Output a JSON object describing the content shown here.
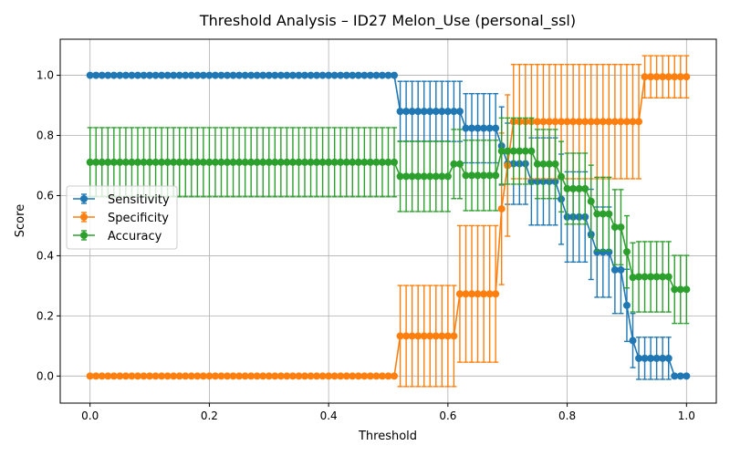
{
  "chart_data": {
    "type": "line",
    "title": "Threshold Analysis – ID27 Melon_Use (personal_ssl)",
    "xlabel": "Threshold",
    "ylabel": "Score",
    "xlim": [
      -0.05,
      1.05
    ],
    "ylim": [
      -0.09,
      1.12
    ],
    "xticks": [
      0.0,
      0.2,
      0.4,
      0.6,
      0.8,
      1.0
    ],
    "xtick_labels": [
      "0.0",
      "0.2",
      "0.4",
      "0.6",
      "0.8",
      "1.0"
    ],
    "yticks": [
      0.0,
      0.2,
      0.4,
      0.6,
      0.8,
      1.0
    ],
    "ytick_labels": [
      "0.0",
      "0.2",
      "0.4",
      "0.6",
      "0.8",
      "1.0"
    ],
    "grid": true,
    "legend_position": "center-left",
    "error_bars": true,
    "x": [
      0.0,
      0.01,
      0.02,
      0.03,
      0.04,
      0.05,
      0.06,
      0.07,
      0.08,
      0.09,
      0.1,
      0.11,
      0.12,
      0.13,
      0.14,
      0.15,
      0.16,
      0.17,
      0.18,
      0.19,
      0.2,
      0.21,
      0.22,
      0.23,
      0.24,
      0.25,
      0.26,
      0.27,
      0.28,
      0.29,
      0.3,
      0.31,
      0.32,
      0.33,
      0.34,
      0.35,
      0.36,
      0.37,
      0.38,
      0.39,
      0.4,
      0.41,
      0.42,
      0.43,
      0.44,
      0.45,
      0.46,
      0.47,
      0.48,
      0.49,
      0.5,
      0.51,
      0.52,
      0.53,
      0.54,
      0.55,
      0.56,
      0.57,
      0.58,
      0.59,
      0.6,
      0.61,
      0.62,
      0.63,
      0.64,
      0.65,
      0.66,
      0.67,
      0.68,
      0.69,
      0.7,
      0.71,
      0.72,
      0.73,
      0.74,
      0.75,
      0.76,
      0.77,
      0.78,
      0.79,
      0.8,
      0.81,
      0.82,
      0.83,
      0.84,
      0.85,
      0.86,
      0.87,
      0.88,
      0.89,
      0.9,
      0.91,
      0.92,
      0.93,
      0.94,
      0.95,
      0.96,
      0.97,
      0.98,
      0.99,
      1.0
    ],
    "series": [
      {
        "name": "Sensitivity",
        "color": "#1f77b4",
        "values": [
          1.0,
          1.0,
          1.0,
          1.0,
          1.0,
          1.0,
          1.0,
          1.0,
          1.0,
          1.0,
          1.0,
          1.0,
          1.0,
          1.0,
          1.0,
          1.0,
          1.0,
          1.0,
          1.0,
          1.0,
          1.0,
          1.0,
          1.0,
          1.0,
          1.0,
          1.0,
          1.0,
          1.0,
          1.0,
          1.0,
          1.0,
          1.0,
          1.0,
          1.0,
          1.0,
          1.0,
          1.0,
          1.0,
          1.0,
          1.0,
          1.0,
          1.0,
          1.0,
          1.0,
          1.0,
          1.0,
          1.0,
          1.0,
          1.0,
          1.0,
          1.0,
          1.0,
          0.88,
          0.88,
          0.88,
          0.88,
          0.88,
          0.88,
          0.88,
          0.88,
          0.88,
          0.88,
          0.88,
          0.824,
          0.824,
          0.824,
          0.824,
          0.824,
          0.824,
          0.765,
          0.706,
          0.706,
          0.706,
          0.706,
          0.647,
          0.647,
          0.647,
          0.647,
          0.647,
          0.588,
          0.529,
          0.529,
          0.529,
          0.529,
          0.471,
          0.412,
          0.412,
          0.412,
          0.353,
          0.353,
          0.235,
          0.118,
          0.059,
          0.059,
          0.059,
          0.059,
          0.059,
          0.059,
          0.0,
          0.0,
          0.0
        ],
        "errors": [
          0.0,
          0.0,
          0.0,
          0.0,
          0.0,
          0.0,
          0.0,
          0.0,
          0.0,
          0.0,
          0.0,
          0.0,
          0.0,
          0.0,
          0.0,
          0.0,
          0.0,
          0.0,
          0.0,
          0.0,
          0.0,
          0.0,
          0.0,
          0.0,
          0.0,
          0.0,
          0.0,
          0.0,
          0.0,
          0.0,
          0.0,
          0.0,
          0.0,
          0.0,
          0.0,
          0.0,
          0.0,
          0.0,
          0.0,
          0.0,
          0.0,
          0.0,
          0.0,
          0.0,
          0.0,
          0.0,
          0.0,
          0.0,
          0.0,
          0.0,
          0.0,
          0.0,
          0.1,
          0.1,
          0.1,
          0.1,
          0.1,
          0.1,
          0.1,
          0.1,
          0.1,
          0.1,
          0.1,
          0.115,
          0.115,
          0.115,
          0.115,
          0.115,
          0.115,
          0.13,
          0.135,
          0.135,
          0.135,
          0.135,
          0.145,
          0.145,
          0.145,
          0.145,
          0.145,
          0.15,
          0.15,
          0.15,
          0.15,
          0.15,
          0.15,
          0.15,
          0.15,
          0.15,
          0.145,
          0.145,
          0.12,
          0.09,
          0.07,
          0.07,
          0.07,
          0.07,
          0.07,
          0.07,
          0.0,
          0.0,
          0.0
        ]
      },
      {
        "name": "Specificity",
        "color": "#ff7f0e",
        "values": [
          0.0,
          0.0,
          0.0,
          0.0,
          0.0,
          0.0,
          0.0,
          0.0,
          0.0,
          0.0,
          0.0,
          0.0,
          0.0,
          0.0,
          0.0,
          0.0,
          0.0,
          0.0,
          0.0,
          0.0,
          0.0,
          0.0,
          0.0,
          0.0,
          0.0,
          0.0,
          0.0,
          0.0,
          0.0,
          0.0,
          0.0,
          0.0,
          0.0,
          0.0,
          0.0,
          0.0,
          0.0,
          0.0,
          0.0,
          0.0,
          0.0,
          0.0,
          0.0,
          0.0,
          0.0,
          0.0,
          0.0,
          0.0,
          0.0,
          0.0,
          0.0,
          0.0,
          0.133,
          0.133,
          0.133,
          0.133,
          0.133,
          0.133,
          0.133,
          0.133,
          0.133,
          0.133,
          0.273,
          0.273,
          0.273,
          0.273,
          0.273,
          0.273,
          0.273,
          0.556,
          0.7,
          0.846,
          0.846,
          0.846,
          0.846,
          0.846,
          0.846,
          0.846,
          0.846,
          0.846,
          0.846,
          0.846,
          0.846,
          0.846,
          0.846,
          0.846,
          0.846,
          0.846,
          0.846,
          0.846,
          0.846,
          0.846,
          0.846,
          0.995,
          0.995,
          0.995,
          0.995,
          0.995,
          0.995,
          0.995,
          0.995
        ],
        "errors": [
          0.0,
          0.0,
          0.0,
          0.0,
          0.0,
          0.0,
          0.0,
          0.0,
          0.0,
          0.0,
          0.0,
          0.0,
          0.0,
          0.0,
          0.0,
          0.0,
          0.0,
          0.0,
          0.0,
          0.0,
          0.0,
          0.0,
          0.0,
          0.0,
          0.0,
          0.0,
          0.0,
          0.0,
          0.0,
          0.0,
          0.0,
          0.0,
          0.0,
          0.0,
          0.0,
          0.0,
          0.0,
          0.0,
          0.0,
          0.0,
          0.0,
          0.0,
          0.0,
          0.0,
          0.0,
          0.0,
          0.0,
          0.0,
          0.0,
          0.0,
          0.0,
          0.0,
          0.168,
          0.168,
          0.168,
          0.168,
          0.168,
          0.168,
          0.168,
          0.168,
          0.168,
          0.168,
          0.227,
          0.227,
          0.227,
          0.227,
          0.227,
          0.227,
          0.227,
          0.252,
          0.235,
          0.19,
          0.19,
          0.19,
          0.19,
          0.19,
          0.19,
          0.19,
          0.19,
          0.19,
          0.19,
          0.19,
          0.19,
          0.19,
          0.19,
          0.19,
          0.19,
          0.19,
          0.19,
          0.19,
          0.19,
          0.19,
          0.19,
          0.07,
          0.07,
          0.07,
          0.07,
          0.07,
          0.07,
          0.07,
          0.07
        ]
      },
      {
        "name": "Accuracy",
        "color": "#2ca02c",
        "values": [
          0.711,
          0.711,
          0.711,
          0.711,
          0.711,
          0.711,
          0.711,
          0.711,
          0.711,
          0.711,
          0.711,
          0.711,
          0.711,
          0.711,
          0.711,
          0.711,
          0.711,
          0.711,
          0.711,
          0.711,
          0.711,
          0.711,
          0.711,
          0.711,
          0.711,
          0.711,
          0.711,
          0.711,
          0.711,
          0.711,
          0.711,
          0.711,
          0.711,
          0.711,
          0.711,
          0.711,
          0.711,
          0.711,
          0.711,
          0.711,
          0.711,
          0.711,
          0.711,
          0.711,
          0.711,
          0.711,
          0.711,
          0.711,
          0.711,
          0.711,
          0.711,
          0.711,
          0.664,
          0.664,
          0.664,
          0.664,
          0.664,
          0.664,
          0.664,
          0.664,
          0.664,
          0.705,
          0.705,
          0.667,
          0.667,
          0.667,
          0.667,
          0.667,
          0.667,
          0.748,
          0.748,
          0.748,
          0.748,
          0.748,
          0.748,
          0.705,
          0.705,
          0.705,
          0.705,
          0.663,
          0.623,
          0.623,
          0.623,
          0.623,
          0.581,
          0.539,
          0.539,
          0.539,
          0.495,
          0.495,
          0.413,
          0.328,
          0.33,
          0.33,
          0.33,
          0.33,
          0.33,
          0.33,
          0.288,
          0.288,
          0.288
        ],
        "errors": [
          0.115,
          0.115,
          0.115,
          0.115,
          0.115,
          0.115,
          0.115,
          0.115,
          0.115,
          0.115,
          0.115,
          0.115,
          0.115,
          0.115,
          0.115,
          0.115,
          0.115,
          0.115,
          0.115,
          0.115,
          0.115,
          0.115,
          0.115,
          0.115,
          0.115,
          0.115,
          0.115,
          0.115,
          0.115,
          0.115,
          0.115,
          0.115,
          0.115,
          0.115,
          0.115,
          0.115,
          0.115,
          0.115,
          0.115,
          0.115,
          0.115,
          0.115,
          0.115,
          0.115,
          0.115,
          0.115,
          0.115,
          0.115,
          0.115,
          0.115,
          0.115,
          0.115,
          0.117,
          0.117,
          0.117,
          0.117,
          0.117,
          0.117,
          0.117,
          0.117,
          0.117,
          0.115,
          0.115,
          0.117,
          0.117,
          0.117,
          0.117,
          0.117,
          0.117,
          0.11,
          0.11,
          0.11,
          0.11,
          0.11,
          0.11,
          0.115,
          0.115,
          0.115,
          0.115,
          0.117,
          0.118,
          0.118,
          0.118,
          0.118,
          0.12,
          0.122,
          0.122,
          0.122,
          0.125,
          0.125,
          0.12,
          0.115,
          0.117,
          0.117,
          0.117,
          0.117,
          0.117,
          0.117,
          0.113,
          0.113,
          0.113
        ]
      }
    ]
  }
}
